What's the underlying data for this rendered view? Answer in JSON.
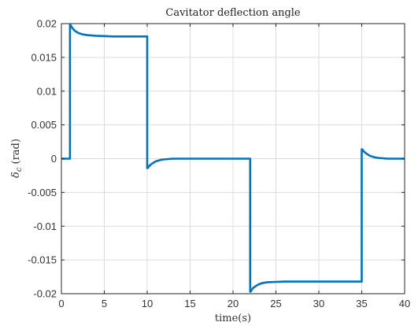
{
  "chart_data": {
    "type": "line",
    "title": "Cavitator deflection angle",
    "xlabel": "time(s)",
    "ylabel_symbol": "δ",
    "ylabel_subscript": "c",
    "ylabel_unit": "(rad)",
    "xlim": [
      0,
      40
    ],
    "ylim": [
      -0.02,
      0.02
    ],
    "grid": true,
    "x_ticks": [
      0,
      5,
      10,
      15,
      20,
      25,
      30,
      35,
      40
    ],
    "x_tick_labels": [
      "0",
      "5",
      "10",
      "15",
      "20",
      "25",
      "30",
      "35",
      "40"
    ],
    "y_ticks": [
      0.02,
      0.015,
      0.01,
      0.005,
      0,
      -0.005,
      -0.01,
      -0.015,
      -0.02
    ],
    "y_tick_labels": [
      "0.02",
      "0.015",
      "0.01",
      "0.005",
      "0",
      "-0.005",
      "-0.01",
      "-0.015",
      "-0.02"
    ],
    "series": [
      {
        "color": "#0072BD",
        "x": [
          0,
          1.0,
          1.0,
          1.05,
          1.3,
          1.6,
          2.0,
          2.5,
          3.0,
          4.0,
          5.0,
          6.0,
          8.0,
          10.0,
          10.0,
          10.05,
          10.3,
          10.6,
          11.0,
          11.5,
          12.0,
          13.0,
          14.0,
          15.0,
          17.0,
          20.0,
          22.0,
          22.0,
          22.05,
          22.3,
          22.6,
          23.0,
          23.5,
          24.0,
          25.0,
          26.0,
          27.0,
          30.0,
          35.0,
          35.0,
          35.05,
          35.3,
          35.6,
          36.0,
          36.5,
          37.0,
          38.0,
          39.0,
          40.0
        ],
        "y": [
          0,
          0,
          0.0198,
          0.0198,
          0.0193,
          0.0189,
          0.0186,
          0.0184,
          0.0183,
          0.0182,
          0.01815,
          0.0181,
          0.0181,
          0.0181,
          -0.0014,
          -0.0014,
          -0.001,
          -0.0007,
          -0.0004,
          -0.0002,
          -0.0001,
          0,
          0,
          0,
          0,
          0,
          0,
          -0.0197,
          -0.0197,
          -0.0192,
          -0.0189,
          -0.0186,
          -0.0184,
          -0.0183,
          -0.01825,
          -0.0182,
          -0.0182,
          -0.0182,
          -0.0182,
          0.0014,
          0.0014,
          0.001,
          0.0007,
          0.0004,
          0.0002,
          0.0001,
          0,
          0,
          0
        ]
      }
    ]
  }
}
